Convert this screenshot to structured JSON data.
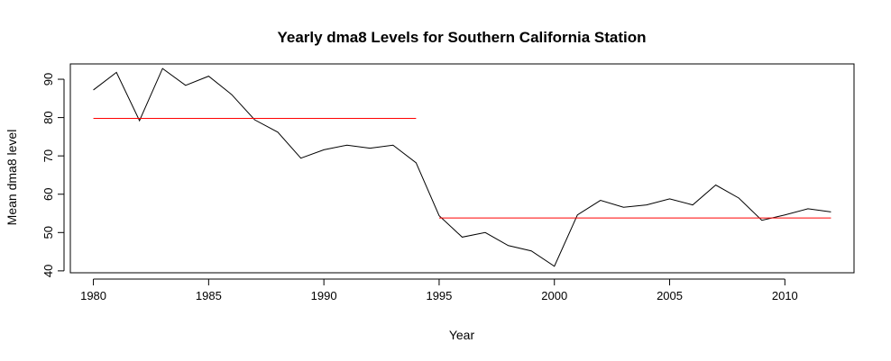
{
  "chart_data": {
    "type": "line",
    "title": "Yearly dma8 Levels for Southern California Station",
    "xlabel": "Year",
    "ylabel": "Mean dma8 level",
    "xlim": [
      1979,
      2013
    ],
    "ylim": [
      39.5,
      94
    ],
    "x_ticks": [
      1980,
      1985,
      1990,
      1995,
      2000,
      2005,
      2010
    ],
    "y_ticks": [
      40,
      50,
      60,
      70,
      80,
      90
    ],
    "grid": false,
    "series": [
      {
        "color": "#000000",
        "x": [
          1980,
          1981,
          1982,
          1983,
          1984,
          1985,
          1986,
          1987,
          1988,
          1989,
          1990,
          1991,
          1992,
          1993,
          1994,
          1995,
          1996,
          1997,
          1998,
          1999,
          2000,
          2001,
          2002,
          2003,
          2004,
          2005,
          2006,
          2007,
          2008,
          2009,
          2010,
          2011,
          2012
        ],
        "values": [
          87.2,
          91.8,
          79.2,
          92.8,
          88.4,
          90.8,
          86.0,
          79.4,
          76.2,
          69.4,
          71.6,
          72.8,
          72.0,
          72.8,
          68.2,
          54.4,
          48.8,
          50.0,
          46.6,
          45.2,
          41.2,
          54.6,
          58.4,
          56.6,
          57.2,
          58.8,
          57.2,
          62.4,
          59.0,
          53.2,
          54.6,
          56.2,
          55.4
        ]
      }
    ],
    "reference_lines": [
      {
        "color": "#ff0000",
        "x": [
          1980,
          1994
        ],
        "y": 79.8
      },
      {
        "color": "#ff0000",
        "x": [
          1995,
          2012
        ],
        "y": 53.8
      }
    ]
  }
}
